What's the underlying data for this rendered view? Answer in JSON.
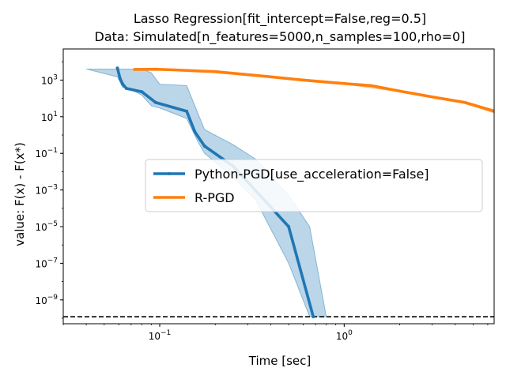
{
  "chart_data": {
    "type": "line",
    "title": "Lasso Regression[fit_intercept=False,reg=0.5]",
    "subtitle": "Data: Simulated[n_features=5000,n_samples=100,rho=0]",
    "xlabel": "Time [sec]",
    "ylabel": "value: F(x) - F(x*)",
    "xscale": "log",
    "yscale": "log",
    "xlim": [
      0.03,
      6.5
    ],
    "ylim": [
      5e-11,
      50000
    ],
    "grid": false,
    "legend_position": "center-right",
    "x_ticks": [
      {
        "value": 0.1,
        "label": "10",
        "sup": "−1"
      },
      {
        "value": 1,
        "label": "10",
        "sup": "0"
      }
    ],
    "y_ticks": [
      {
        "value": 1000,
        "label": "10",
        "sup": "3"
      },
      {
        "value": 10,
        "label": "10",
        "sup": "1"
      },
      {
        "value": 0.1,
        "label": "10",
        "sup": "−1"
      },
      {
        "value": 0.001,
        "label": "10",
        "sup": "−3"
      },
      {
        "value": 1e-05,
        "label": "10",
        "sup": "−5"
      },
      {
        "value": 1e-07,
        "label": "10",
        "sup": "−7"
      },
      {
        "value": 1e-09,
        "label": "10",
        "sup": "−9"
      }
    ],
    "reference_line": {
      "y": 1.2e-10,
      "style": "dashed",
      "color": "#000000"
    },
    "series": [
      {
        "name": "Python-PGD[use_acceleration=False]",
        "color": "#1f77b4",
        "marker": "dot",
        "x": [
          0.059,
          0.061,
          0.063,
          0.066,
          0.08,
          0.095,
          0.14,
          0.155,
          0.175,
          0.25,
          0.5,
          0.68
        ],
        "y": [
          4500,
          1200,
          600,
          350,
          230,
          60,
          20,
          1.5,
          0.25,
          0.02,
          1e-05,
          1.2e-10
        ],
        "band_x": [
          0.04,
          0.059,
          0.063,
          0.07,
          0.08,
          0.09,
          0.1,
          0.14,
          0.16,
          0.175,
          0.25,
          0.33,
          0.5,
          0.65,
          0.8
        ],
        "band_low": [
          4000,
          1500,
          400,
          300,
          150,
          40,
          30,
          8,
          0.5,
          0.1,
          0.005,
          0.0003,
          1e-07,
          1.2e-10,
          1.2e-10
        ],
        "band_high": [
          4000,
          4000,
          4000,
          4000,
          4000,
          2500,
          600,
          500,
          18,
          2,
          0.3,
          0.05,
          0.0005,
          1e-05,
          1.2e-10
        ]
      },
      {
        "name": "R-PGD",
        "color": "#ff7f0e",
        "marker": "none",
        "x": [
          0.073,
          0.095,
          0.12,
          0.18,
          0.2,
          0.4,
          0.6,
          0.9,
          1.4,
          2,
          3,
          4.5,
          6.5
        ],
        "y": [
          3800,
          3900,
          3600,
          3000,
          2900,
          1500,
          1000,
          700,
          500,
          250,
          120,
          60,
          20
        ],
        "band_x": [
          0.073,
          0.095,
          0.12,
          0.18,
          0.4,
          1,
          2,
          4.5,
          6.5
        ],
        "band_low": [
          3500,
          3600,
          3300,
          2700,
          1400,
          600,
          230,
          55,
          16
        ],
        "band_high": [
          4200,
          4200,
          3900,
          3300,
          1600,
          750,
          270,
          70,
          24
        ]
      }
    ]
  }
}
